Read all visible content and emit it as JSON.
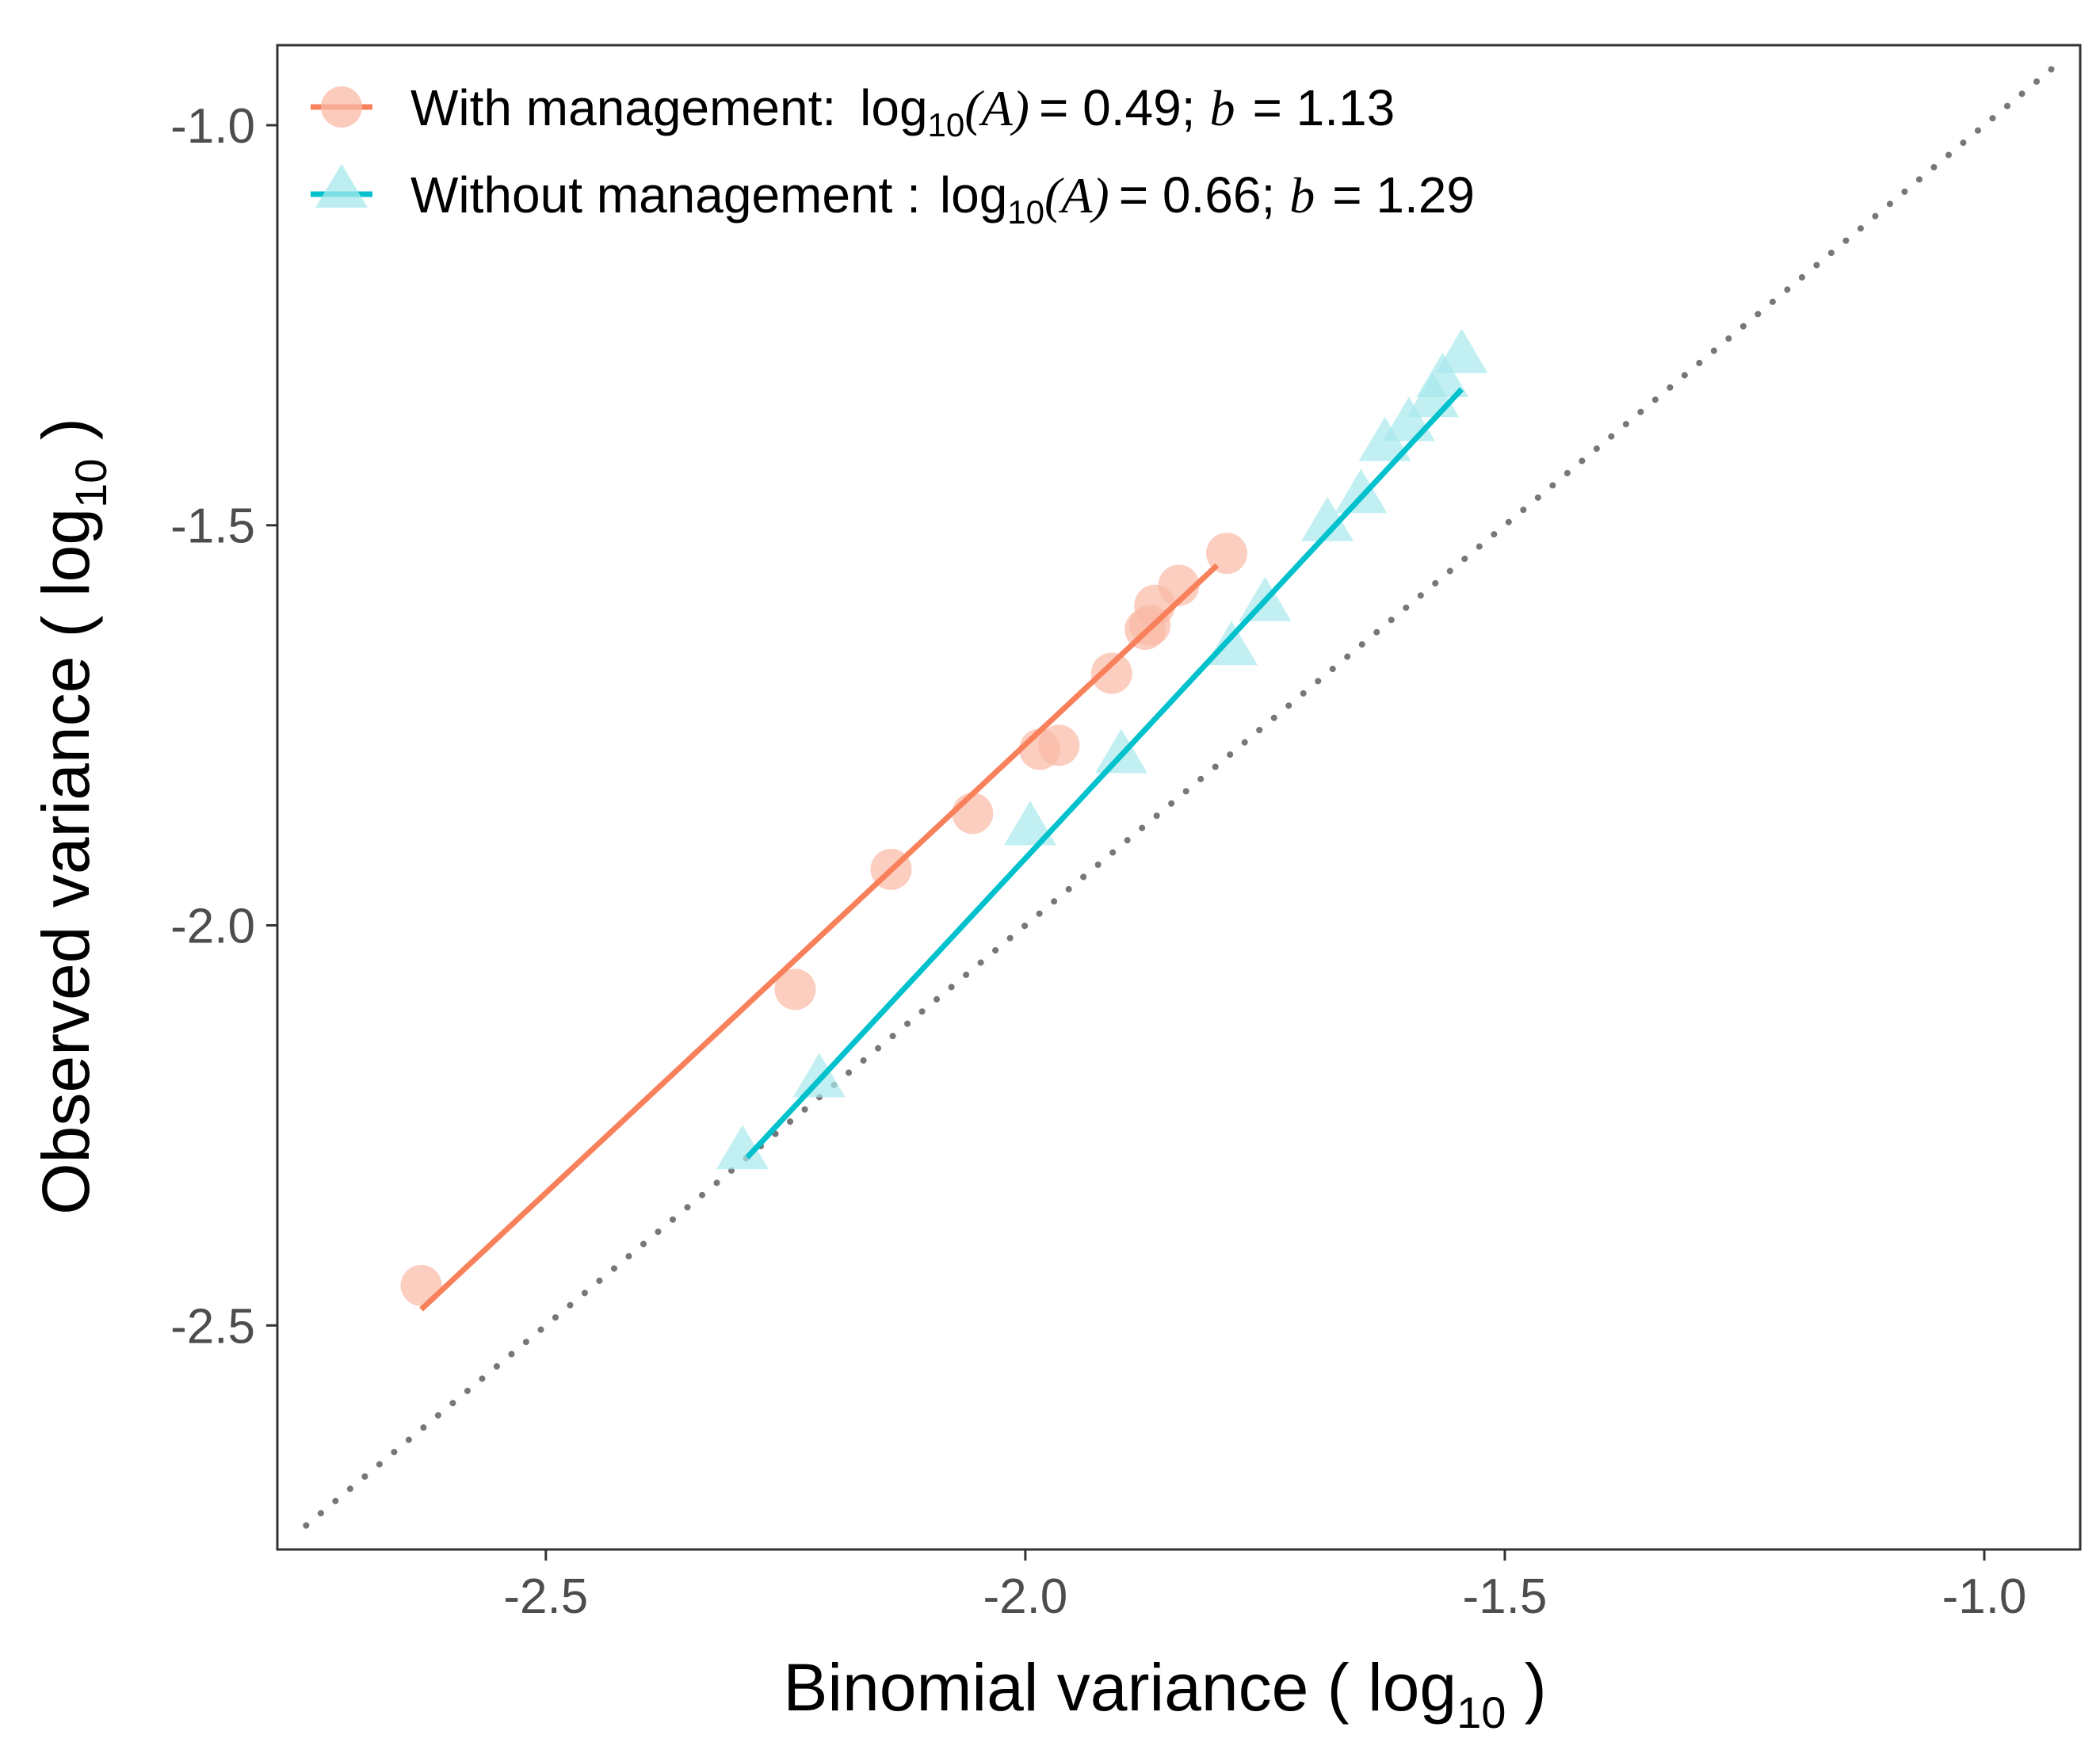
{
  "chart_data": {
    "type": "scatter",
    "xlabel": "Binomial variance ( log10 )",
    "ylabel": "Observed variance ( log10 )",
    "xlabel_parts": {
      "main": "Binomial variance ( log",
      "sub": "10",
      "tail": " )"
    },
    "ylabel_parts": {
      "main": "Observed variance ( log",
      "sub": "10",
      "tail": " )"
    },
    "xlim": [
      -2.78,
      -0.9
    ],
    "ylim": [
      -2.78,
      -0.9
    ],
    "xticks": [
      -2.5,
      -2.0,
      -1.5,
      -1.0
    ],
    "yticks": [
      -2.5,
      -2.0,
      -1.5,
      -1.0
    ],
    "xtick_labels": [
      "-2.5",
      "-2.0",
      "-1.5",
      "-1.0"
    ],
    "ytick_labels": [
      "-2.5",
      "-2.0",
      "-1.5",
      "-1.0"
    ],
    "grid": false,
    "legend_position": "top-left",
    "reference_line": {
      "type": "1:1",
      "style": "dotted",
      "color": "#777777"
    },
    "series": [
      {
        "name": "With management",
        "label": "With management:",
        "marker": "circle",
        "color": "#f8805a",
        "point_color": "#f9b9a5",
        "intercept": 0.49,
        "slope": 1.13,
        "intercept_text": "= 0.49;",
        "slope_text": "= 1.13",
        "fit": {
          "x": [
            -2.63,
            -1.8
          ],
          "y": [
            -2.48,
            -1.55
          ]
        },
        "points": [
          {
            "x": -2.63,
            "y": -2.45
          },
          {
            "x": -2.24,
            "y": -2.08
          },
          {
            "x": -2.14,
            "y": -1.93
          },
          {
            "x": -2.055,
            "y": -1.86
          },
          {
            "x": -1.985,
            "y": -1.78
          },
          {
            "x": -1.965,
            "y": -1.775
          },
          {
            "x": -1.91,
            "y": -1.685
          },
          {
            "x": -1.875,
            "y": -1.63
          },
          {
            "x": -1.87,
            "y": -1.625
          },
          {
            "x": -1.865,
            "y": -1.6
          },
          {
            "x": -1.84,
            "y": -1.575
          },
          {
            "x": -1.79,
            "y": -1.535
          }
        ]
      },
      {
        "name": "Without management",
        "label": "Without management :",
        "marker": "triangle",
        "color": "#00c1cc",
        "point_color": "#a6e8ec",
        "intercept": 0.66,
        "slope": 1.29,
        "intercept_text": "= 0.66;",
        "slope_text": "= 1.29",
        "fit": {
          "x": [
            -2.29,
            -1.545
          ],
          "y": [
            -2.29,
            -1.33
          ]
        },
        "points": [
          {
            "x": -2.295,
            "y": -2.285
          },
          {
            "x": -2.215,
            "y": -2.195
          },
          {
            "x": -1.995,
            "y": -1.88
          },
          {
            "x": -1.9,
            "y": -1.79
          },
          {
            "x": -1.785,
            "y": -1.655
          },
          {
            "x": -1.75,
            "y": -1.6
          },
          {
            "x": -1.685,
            "y": -1.5
          },
          {
            "x": -1.65,
            "y": -1.465
          },
          {
            "x": -1.625,
            "y": -1.4
          },
          {
            "x": -1.6,
            "y": -1.375
          },
          {
            "x": -1.575,
            "y": -1.345
          },
          {
            "x": -1.565,
            "y": -1.32
          },
          {
            "x": -1.545,
            "y": -1.29
          }
        ]
      }
    ]
  }
}
